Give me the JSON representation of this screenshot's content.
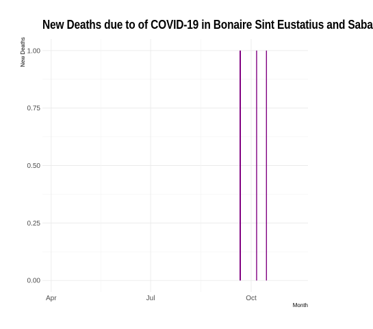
{
  "chart_data": {
    "type": "bar",
    "title": "New Deaths due to of COVID-19 in Bonaire Sint Eustatius and Saba",
    "xlabel": "Month",
    "ylabel": "New Deaths",
    "x_tick_labels": [
      "Apr",
      "Jul",
      "Oct"
    ],
    "x_tick_dates": [
      "2020-04-01",
      "2020-07-01",
      "2020-10-01"
    ],
    "y_ticks": [
      0.0,
      0.25,
      0.5,
      0.75,
      1.0
    ],
    "y_tick_labels": [
      "0.00",
      "0.25",
      "0.50",
      "0.75",
      "1.00"
    ],
    "xlim": [
      "2020-03-24",
      "2020-11-22"
    ],
    "ylim": [
      -0.05,
      1.05
    ],
    "grid": true,
    "legend": "none",
    "bar_color": "#800080",
    "series": [
      {
        "x": [
          "2020-09-21",
          "2020-10-06",
          "2020-10-15"
        ],
        "values": [
          1,
          1,
          1
        ]
      }
    ]
  }
}
